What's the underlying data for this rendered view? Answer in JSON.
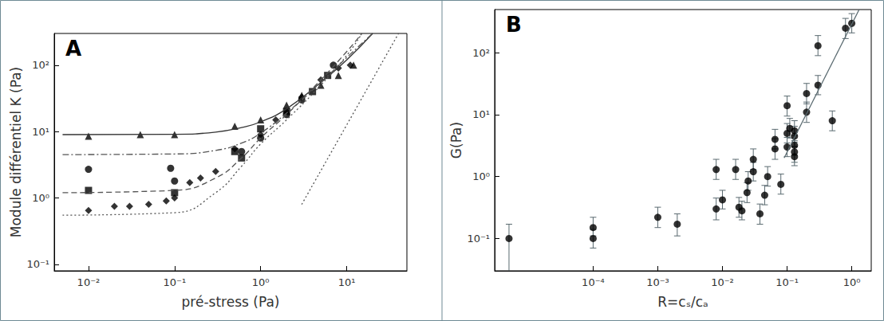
{
  "chart_data": [
    {
      "type": "scatter",
      "annotation": "A",
      "log": true,
      "grid": false,
      "x_label": "pré-stress (Pa)",
      "y_label": "Module différentiel K (Pa)",
      "xlim": [
        0.004,
        50
      ],
      "ylim": [
        0.08,
        300
      ],
      "xticks": [
        {
          "value": 0.01,
          "label": "10⁻²"
        },
        {
          "value": 0.1,
          "label": "10⁻¹"
        },
        {
          "value": 1,
          "label": "10⁰"
        },
        {
          "value": 10,
          "label": "10¹"
        }
      ],
      "yticks": [
        {
          "value": 0.1,
          "label": "10⁻¹"
        },
        {
          "value": 1,
          "label": "10⁰"
        },
        {
          "value": 10,
          "label": "10¹"
        },
        {
          "value": 100,
          "label": "10²"
        }
      ],
      "series": [
        {
          "type": "scatter",
          "marker": "triangle",
          "color": "#000000",
          "x": [
            0.01,
            0.04,
            0.1,
            0.5,
            1,
            2,
            3,
            5,
            8,
            12
          ],
          "values": [
            8.5,
            9,
            9,
            12,
            15,
            25,
            35,
            50,
            70,
            100
          ]
        },
        {
          "type": "scatter",
          "marker": "circle",
          "color": "#000000",
          "x": [
            0.01,
            0.09,
            0.1,
            0.6,
            1,
            2,
            3,
            7
          ],
          "values": [
            2.7,
            2.8,
            1.8,
            5,
            8,
            18,
            30,
            100
          ]
        },
        {
          "type": "scatter",
          "marker": "square",
          "color": "#000000",
          "x": [
            0.01,
            0.1,
            0.5,
            0.6,
            1,
            2,
            4,
            6
          ],
          "values": [
            1.3,
            1.2,
            5,
            4,
            11,
            20,
            40,
            70
          ]
        },
        {
          "type": "scatter",
          "marker": "diamond",
          "color": "#000000",
          "x": [
            0.01,
            0.02,
            0.03,
            0.05,
            0.08,
            0.1,
            0.15,
            0.2,
            0.3,
            0.5,
            1,
            1.5,
            2,
            3,
            5,
            8,
            11
          ],
          "values": [
            0.65,
            0.75,
            0.75,
            0.8,
            0.9,
            1.0,
            1.7,
            2.0,
            2.5,
            5.5,
            9,
            15,
            20,
            33,
            60,
            90,
            100
          ]
        },
        {
          "type": "line",
          "line_style": "solid",
          "color": "#333333",
          "x": [
            0.005,
            0.1,
            0.3,
            0.6,
            1,
            2,
            5,
            10,
            20
          ],
          "values": [
            9,
            9.1,
            9.8,
            11.5,
            14,
            22,
            55,
            120,
            300
          ]
        },
        {
          "type": "line",
          "line_style": "dashdot",
          "color": "#555555",
          "x": [
            0.005,
            0.1,
            0.3,
            0.6,
            1,
            2,
            5,
            10,
            20
          ],
          "values": [
            4.5,
            4.6,
            5.2,
            6.7,
            9.5,
            19,
            55,
            130,
            300
          ]
        },
        {
          "type": "line",
          "line_style": "dashed",
          "color": "#555555",
          "x": [
            0.005,
            0.1,
            0.3,
            0.6,
            1,
            2,
            5,
            10,
            15
          ],
          "values": [
            1.2,
            1.3,
            2,
            4,
            8,
            18,
            60,
            160,
            300
          ]
        },
        {
          "type": "line",
          "line_style": "dotted",
          "color": "#555555",
          "x": [
            0.005,
            0.1,
            0.3,
            0.6,
            1,
            2,
            5,
            10,
            15
          ],
          "values": [
            0.55,
            0.6,
            1.2,
            3,
            6.5,
            15,
            50,
            140,
            300
          ]
        },
        {
          "type": "line",
          "line_style": "dotted",
          "color": "#555555",
          "x": [
            3,
            40
          ],
          "values": [
            0.8,
            300
          ]
        }
      ]
    },
    {
      "type": "scatter",
      "annotation": "B",
      "log": true,
      "grid": false,
      "x_label": "R=cₛ/cₐ",
      "y_label": "G(Pa)",
      "xlim": [
        3e-06,
        2
      ],
      "ylim": [
        0.03,
        500
      ],
      "xticks": [
        {
          "value": 0.0001,
          "label": "10⁻⁴"
        },
        {
          "value": 0.001,
          "label": "10⁻³"
        },
        {
          "value": 0.01,
          "label": "10⁻²"
        },
        {
          "value": 0.1,
          "label": "10⁻¹"
        },
        {
          "value": 1,
          "label": "10⁰"
        }
      ],
      "yticks": [
        {
          "value": 0.1,
          "label": "10⁻¹"
        },
        {
          "value": 1,
          "label": "10⁰"
        },
        {
          "value": 10,
          "label": "10¹"
        },
        {
          "value": 100,
          "label": "10²"
        }
      ],
      "series": [
        {
          "type": "scatter",
          "marker": "circle",
          "color": "#000000",
          "x": [
            5e-06,
            0.0001,
            0.0001,
            0.001,
            0.002,
            0.008,
            0.008,
            0.01,
            0.016,
            0.018,
            0.02,
            0.024,
            0.025,
            0.03,
            0.03,
            0.038,
            0.045,
            0.05,
            0.065,
            0.065,
            0.08,
            0.1,
            0.1,
            0.1,
            0.11,
            0.13,
            0.13,
            0.13,
            0.13,
            0.13,
            0.2,
            0.2,
            0.3,
            0.3,
            0.5,
            0.8,
            1.0
          ],
          "values": [
            0.1,
            0.15,
            0.1,
            0.22,
            0.17,
            1.3,
            0.3,
            0.42,
            1.3,
            0.32,
            0.28,
            0.55,
            0.85,
            1.9,
            1.2,
            0.25,
            0.5,
            1.0,
            2.8,
            4.0,
            0.75,
            5,
            14,
            3,
            6,
            2.5,
            3.2,
            4.5,
            2.1,
            5.5,
            11,
            22,
            130,
            30,
            8,
            250,
            300
          ],
          "error_low": [
            0.025,
            0.11,
            0.07,
            0.15,
            0.11,
            0.9,
            0.2,
            0.3,
            0.9,
            0.22,
            0.2,
            0.38,
            0.6,
            1.3,
            0.85,
            0.17,
            0.35,
            0.7,
            1.9,
            2.8,
            0.52,
            3.5,
            9.5,
            2.1,
            4.2,
            1.7,
            2.2,
            3.1,
            1.5,
            3.8,
            7.5,
            15,
            90,
            21,
            5.5,
            170,
            210
          ],
          "error_high": [
            0.17,
            0.22,
            0.14,
            0.32,
            0.25,
            1.9,
            0.45,
            0.6,
            1.9,
            0.46,
            0.4,
            0.8,
            1.2,
            2.8,
            1.7,
            0.36,
            0.72,
            1.45,
            4.1,
            5.8,
            1.1,
            7.2,
            20,
            4.3,
            8.7,
            3.6,
            4.6,
            6.5,
            3.0,
            8,
            16,
            32,
            190,
            43,
            11.5,
            360,
            430
          ]
        },
        {
          "type": "line",
          "line_style": "solid",
          "color": "#5a6a70",
          "x": [
            0.09,
            1.3
          ],
          "values": [
            2,
            500
          ]
        }
      ]
    }
  ]
}
